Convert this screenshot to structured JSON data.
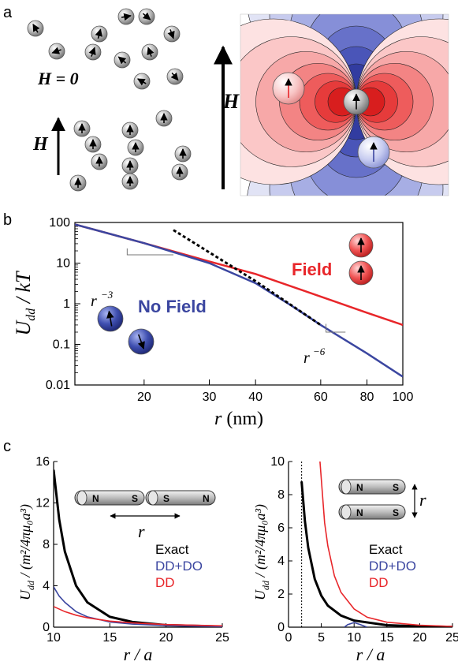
{
  "panels": {
    "a": {
      "letter": "a",
      "h_zero_label": "H = 0",
      "h_label": "H",
      "field_label": "H"
    },
    "b": {
      "letter": "b",
      "field_label": "Field",
      "nofield_label": "No Field",
      "slope3_label": "r",
      "slope3_exp": "−3",
      "slope6_label": "r",
      "slope6_exp": "−6",
      "ylabel_main": "U",
      "ylabel_sub": "dd",
      "ylabel_rest": " / kT",
      "xlabel_var": "r",
      "xlabel_unit": " (nm)"
    },
    "c": {
      "letter": "c",
      "ylabel_main": "U",
      "ylabel_sub": "dd",
      "ylabel_rest": " / (m²/4πμ₀a³)",
      "xlabel": "r / a",
      "magnet_n": "N",
      "magnet_s": "S",
      "sep_label": "r",
      "legend": [
        "Exact",
        "DD+DO",
        "DD"
      ]
    }
  },
  "colors": {
    "exact": "#000000",
    "ddo": "#3b46a0",
    "dd": "#e8262a",
    "field": "#e8262a",
    "nofield": "#3b46a0"
  },
  "chart_data": [
    {
      "type": "line",
      "panel": "b",
      "xscale": "log",
      "yscale": "log",
      "xlim": [
        13,
        100
      ],
      "ylim": [
        0.01,
        100
      ],
      "xticks": [
        20,
        30,
        40,
        60,
        80,
        100
      ],
      "yticks": [
        100,
        10,
        1,
        0.1,
        0.01
      ],
      "ytick_labels": [
        "100",
        "10",
        "1",
        "0.1",
        "0.01"
      ],
      "xlabel": "r (nm)",
      "ylabel": "Udd / kT",
      "series": [
        {
          "name": "Field",
          "color": "#e8262a",
          "style": "solid",
          "x": [
            13,
            20,
            30,
            40,
            60,
            80,
            100
          ],
          "y": [
            90,
            31,
            11,
            5.4,
            1.5,
            0.6,
            0.3
          ]
        },
        {
          "name": "No Field",
          "color": "#3b46a0",
          "style": "solid",
          "x": [
            13,
            20,
            30,
            40,
            50,
            60,
            80,
            100
          ],
          "y": [
            90,
            31,
            10,
            3.2,
            0.9,
            0.3,
            0.06,
            0.016
          ]
        },
        {
          "color": "#000000",
          "style": "dashed",
          "x": [
            24,
            40,
            60
          ],
          "y": [
            65,
            3.6,
            0.3
          ]
        }
      ]
    },
    {
      "type": "line",
      "panel": "c-left",
      "xlim": [
        10,
        25
      ],
      "ylim": [
        0,
        16
      ],
      "xticks": [
        10,
        15,
        20,
        25
      ],
      "yticks": [
        0,
        4,
        8,
        12,
        16
      ],
      "xlabel": "r / a",
      "ylabel": "Udd / (m²/4πμ₀a³)",
      "series": [
        {
          "name": "Exact",
          "color": "#000000",
          "x": [
            10,
            10.5,
            11,
            12,
            13,
            15,
            17,
            20,
            25
          ],
          "y": [
            15.2,
            10.4,
            7.3,
            4.0,
            2.4,
            1.0,
            0.5,
            0.2,
            0.06
          ]
        },
        {
          "name": "DD+DO",
          "color": "#3b46a0",
          "x": [
            10,
            10.5,
            11,
            12,
            13,
            15,
            17,
            20,
            25
          ],
          "y": [
            3.9,
            3.0,
            2.4,
            1.5,
            1.0,
            0.5,
            0.3,
            0.15,
            0.05
          ]
        },
        {
          "name": "DD",
          "color": "#e8262a",
          "x": [
            10,
            11,
            12,
            13,
            15,
            17,
            20,
            25
          ],
          "y": [
            2.0,
            1.5,
            1.16,
            0.91,
            0.59,
            0.41,
            0.25,
            0.13
          ]
        }
      ]
    },
    {
      "type": "line",
      "panel": "c-right",
      "xlim": [
        0,
        25
      ],
      "ylim": [
        0,
        10
      ],
      "xticks": [
        0,
        5,
        10,
        15,
        20,
        25
      ],
      "yticks": [
        0,
        2,
        4,
        6,
        8,
        10
      ],
      "xlabel": "r / a",
      "ylabel": "Udd / (m²/4πμ₀a³)",
      "vline": 2,
      "series": [
        {
          "name": "Exact",
          "color": "#000000",
          "x": [
            2,
            2.5,
            3,
            4,
            5,
            6,
            8,
            10,
            15,
            20,
            25
          ],
          "y": [
            8.8,
            6.4,
            4.8,
            2.9,
            1.9,
            1.3,
            0.7,
            0.4,
            0.12,
            0.05,
            0.02
          ]
        },
        {
          "name": "DD",
          "color": "#e8262a",
          "x": [
            4.8,
            5.5,
            6,
            7,
            8,
            10,
            12,
            15,
            20,
            25
          ],
          "y": [
            10,
            6.3,
            4.9,
            3.1,
            2.1,
            1.1,
            0.6,
            0.3,
            0.12,
            0.05
          ]
        },
        {
          "name": "DD+DO",
          "color": "#3b46a0",
          "x": [
            8.5,
            9,
            10,
            11,
            12
          ],
          "y": [
            0,
            0.15,
            0.28,
            0.15,
            0
          ]
        }
      ]
    }
  ]
}
